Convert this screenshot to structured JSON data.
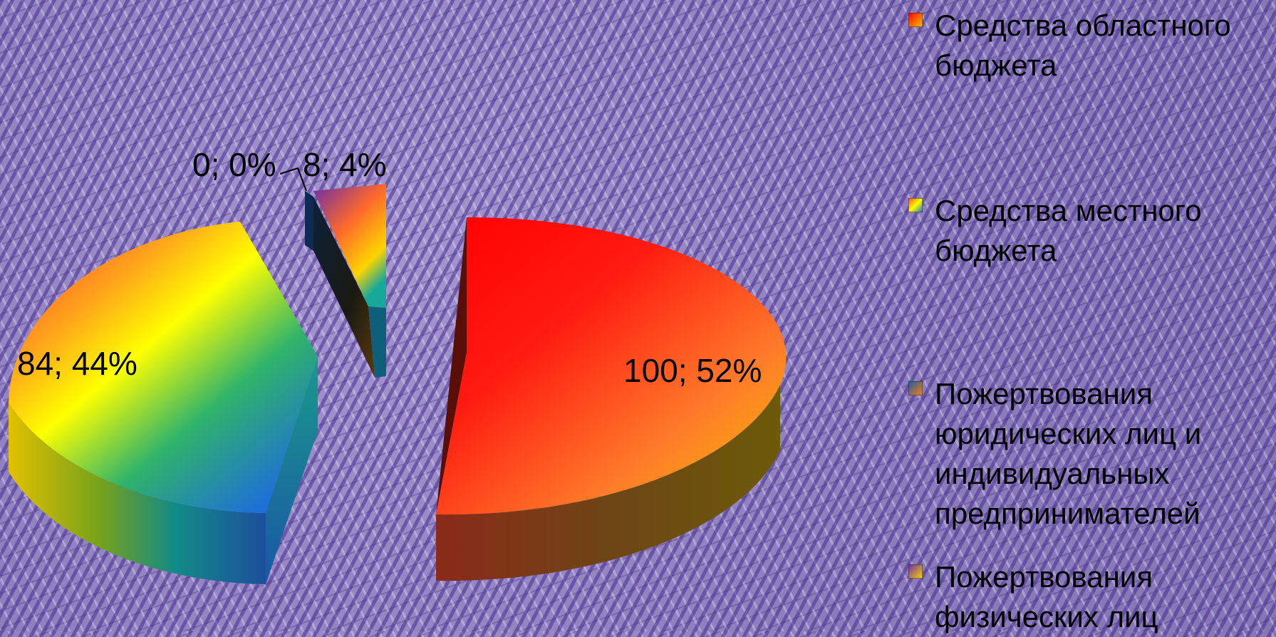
{
  "chart_data": {
    "type": "pie",
    "style": "3d-exploded",
    "legend_position": "right",
    "slices": [
      {
        "name": "Средства областного бюджета",
        "value": 100,
        "percent": 52,
        "label": "100; 52%",
        "color_from": "#ff0000",
        "color_to": "#f5c400"
      },
      {
        "name": "Средства местного бюджета",
        "value": 84,
        "percent": 44,
        "label": "84; 44%",
        "color_from": "#ff5a1f",
        "color_to": "#1a6fd6"
      },
      {
        "name": "Пожертвования юридических лиц и индивидуальных предпринимателей",
        "value": 0,
        "percent": 0,
        "label": "0; 0%",
        "color_from": "#1e5b9e",
        "color_to": "#f57f17"
      },
      {
        "name": "Пожертвования физических лиц",
        "value": 8,
        "percent": 4,
        "label": "8; 4%",
        "color_from": "#6a2ba8",
        "color_to": "#ffd400"
      }
    ]
  },
  "legend": {
    "items": [
      {
        "label": "Средства областного бюджета",
        "marker": "red-yellow-gradient"
      },
      {
        "label": "Средства местного бюджета",
        "marker": "rainbow-gradient"
      },
      {
        "label": "Пожертвования юридических лиц и индивидуальных предпринимателей",
        "marker": "blue-orange-gradient"
      },
      {
        "label": "Пожертвования физических лиц",
        "marker": "purple-orange-gradient"
      }
    ]
  }
}
